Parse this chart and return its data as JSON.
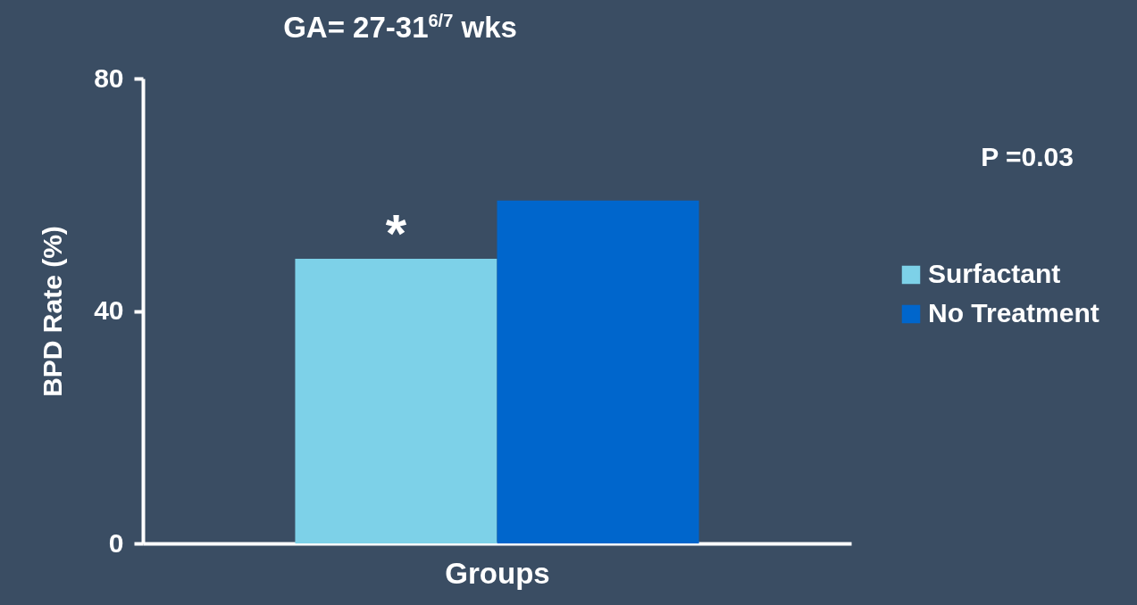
{
  "chart_data": {
    "type": "bar",
    "title": "GA= 27-31$^{6/7}$ wks",
    "xlabel": "Groups",
    "ylabel": "BPD Rate (%)",
    "categories": [
      null
    ],
    "series": [
      {
        "name": "Surfactant",
        "color": "#7dd1e8",
        "values": [
          49
        ]
      },
      {
        "name": "No Treatment",
        "color": "#0066cc",
        "values": [
          59
        ]
      }
    ],
    "ylim": [
      0,
      80
    ],
    "yticks": [
      0,
      40,
      80
    ],
    "grid": false,
    "legend": "right",
    "tick_labels": "y",
    "annotations": [
      "*",
      "P =0.03"
    ]
  }
}
